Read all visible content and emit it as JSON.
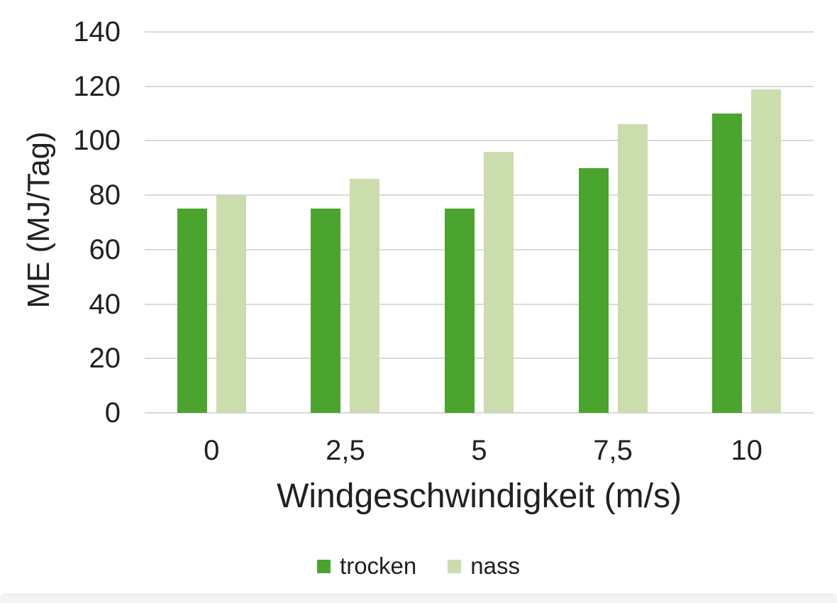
{
  "chart_data": {
    "type": "bar",
    "categories": [
      "0",
      "2,5",
      "5",
      "7,5",
      "10"
    ],
    "series": [
      {
        "name": "trocken",
        "color": "#4AA42E",
        "values": [
          75,
          75,
          75,
          90,
          110
        ]
      },
      {
        "name": "nass",
        "color": "#CBDCAD",
        "values": [
          80,
          86,
          96,
          106,
          119
        ]
      }
    ],
    "title": "",
    "xlabel": "Windgeschwindigkeit (m/s)",
    "ylabel": "ME (MJ/Tag)",
    "ylim": [
      0,
      140
    ],
    "yticks": [
      0,
      20,
      40,
      60,
      80,
      100,
      120,
      140
    ],
    "grid": true,
    "legend_position": "bottom",
    "gridline_color": "#D9D9D9",
    "text_color": "#212121"
  }
}
